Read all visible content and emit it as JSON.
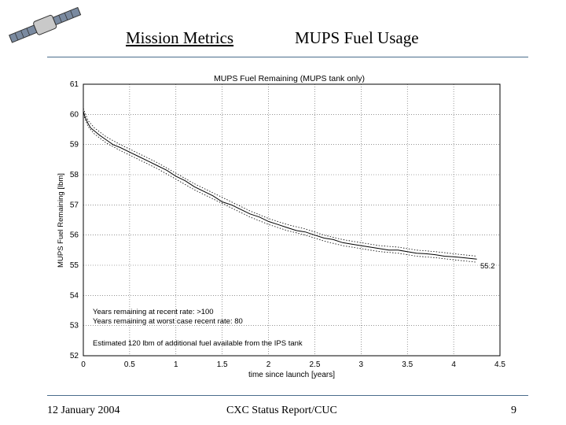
{
  "slide": {
    "section_title": "Mission Metrics",
    "topic_title": "MUPS Fuel Usage",
    "footer_date": "12 January 2004",
    "footer_center": "CXC Status Report/CUC",
    "page_number": "9",
    "logo_icon": "satellite-icon"
  },
  "colors": {
    "rule": "#4a6d8c",
    "line": "#000000",
    "grid": "#555555"
  },
  "chart_data": {
    "type": "line",
    "title": "MUPS Fuel Remaining (MUPS tank only)",
    "xlabel": "time since launch [years]",
    "ylabel": "MUPS Fuel Remaining [lbm]",
    "xlim": [
      0,
      4.5
    ],
    "ylim": [
      52,
      61
    ],
    "xticks": [
      0,
      0.5,
      1,
      1.5,
      2,
      2.5,
      3,
      3.5,
      4,
      4.5
    ],
    "xtick_labels": [
      "0",
      "0.5",
      "1",
      "1.5",
      "2",
      "2.5",
      "3",
      "3.5",
      "4",
      "4.5"
    ],
    "yticks": [
      52,
      53,
      54,
      55,
      56,
      57,
      58,
      59,
      60,
      61
    ],
    "ytick_labels": [
      "52",
      "53",
      "54",
      "55",
      "56",
      "57",
      "58",
      "59",
      "60",
      "61"
    ],
    "grid": true,
    "series": [
      {
        "name": "MUPS fuel remaining",
        "style": "solid",
        "x": [
          0.0,
          0.02,
          0.05,
          0.08,
          0.12,
          0.18,
          0.25,
          0.32,
          0.4,
          0.5,
          0.6,
          0.7,
          0.8,
          0.9,
          1.0,
          1.1,
          1.2,
          1.3,
          1.4,
          1.5,
          1.6,
          1.7,
          1.8,
          1.9,
          2.0,
          2.1,
          2.2,
          2.3,
          2.4,
          2.5,
          2.6,
          2.7,
          2.8,
          2.9,
          3.0,
          3.1,
          3.2,
          3.3,
          3.4,
          3.5,
          3.6,
          3.7,
          3.8,
          3.9,
          4.0,
          4.1,
          4.25
        ],
        "y": [
          60.1,
          59.9,
          59.7,
          59.55,
          59.45,
          59.3,
          59.15,
          59.0,
          58.9,
          58.75,
          58.6,
          58.45,
          58.3,
          58.15,
          57.95,
          57.8,
          57.6,
          57.45,
          57.3,
          57.1,
          57.0,
          56.85,
          56.7,
          56.6,
          56.45,
          56.35,
          56.25,
          56.15,
          56.1,
          56.0,
          55.9,
          55.85,
          55.75,
          55.7,
          55.65,
          55.6,
          55.55,
          55.5,
          55.5,
          55.45,
          55.4,
          55.38,
          55.35,
          55.3,
          55.28,
          55.25,
          55.2
        ]
      },
      {
        "name": "upper bound",
        "style": "dotted",
        "x": [
          0.0,
          0.05,
          0.12,
          0.25,
          0.4,
          0.6,
          0.8,
          1.0,
          1.2,
          1.4,
          1.6,
          1.8,
          2.0,
          2.2,
          2.4,
          2.6,
          2.8,
          3.0,
          3.2,
          3.4,
          3.6,
          3.8,
          4.0,
          4.25
        ],
        "y": [
          60.2,
          59.8,
          59.55,
          59.25,
          59.0,
          58.7,
          58.4,
          58.05,
          57.7,
          57.4,
          57.1,
          56.8,
          56.55,
          56.35,
          56.2,
          56.0,
          55.85,
          55.75,
          55.65,
          55.6,
          55.5,
          55.45,
          55.38,
          55.3
        ]
      },
      {
        "name": "lower bound",
        "style": "dotted",
        "x": [
          0.0,
          0.05,
          0.12,
          0.25,
          0.4,
          0.6,
          0.8,
          1.0,
          1.2,
          1.4,
          1.6,
          1.8,
          2.0,
          2.2,
          2.4,
          2.6,
          2.8,
          3.0,
          3.2,
          3.4,
          3.6,
          3.8,
          4.0,
          4.25
        ],
        "y": [
          60.0,
          59.6,
          59.35,
          59.05,
          58.8,
          58.5,
          58.2,
          57.85,
          57.5,
          57.2,
          56.9,
          56.6,
          56.35,
          56.15,
          56.0,
          55.8,
          55.65,
          55.55,
          55.45,
          55.4,
          55.3,
          55.25,
          55.18,
          55.1
        ]
      }
    ],
    "end_label": "55.2",
    "annotations": [
      "Years remaining at recent rate: >100",
      "Years remaining at worst case recent rate: 80",
      "Estimated 120 lbm of additional fuel available from the IPS tank"
    ]
  }
}
